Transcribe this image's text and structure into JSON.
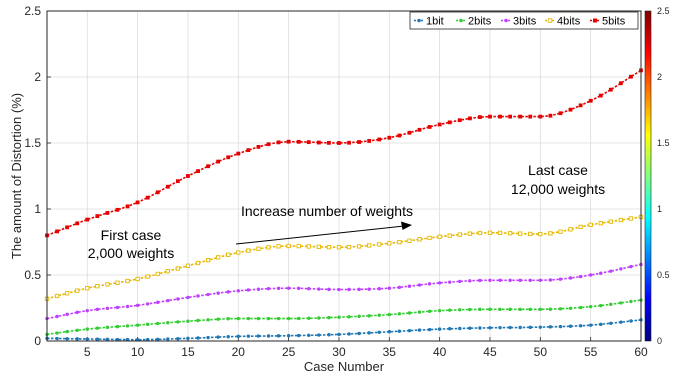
{
  "chart_data": {
    "type": "line",
    "xlabel": "Case Number",
    "ylabel": "The amount of Distortion (%)",
    "xlim": [
      1,
      60
    ],
    "ylim": [
      0,
      2.5
    ],
    "xticks": [
      "5",
      "10",
      "15",
      "20",
      "25",
      "30",
      "35",
      "40",
      "45",
      "50",
      "55",
      "60"
    ],
    "yticks": [
      "0",
      "0.5",
      "1",
      "1.5",
      "2",
      "2.5"
    ],
    "grid": true,
    "legend_position": "top-right",
    "colorbar": {
      "ticks": [
        "0",
        "0.5",
        "1",
        "1.5",
        "2",
        "2.5"
      ],
      "colors": [
        "#00007f",
        "#0000ff",
        "#007fff",
        "#00ffff",
        "#7fff7f",
        "#ffff00",
        "#ff7f00",
        "#ff0000",
        "#7f0000"
      ]
    },
    "anchors_x": [
      1,
      5,
      10,
      15,
      20,
      25,
      30,
      35,
      40,
      45,
      50,
      55,
      60
    ],
    "series": [
      {
        "name": "1bit",
        "color": "#1f77b4",
        "marker": "circle",
        "anchors": [
          0.02,
          0.015,
          0.01,
          0.02,
          0.035,
          0.04,
          0.05,
          0.07,
          0.09,
          0.1,
          0.105,
          0.12,
          0.16
        ]
      },
      {
        "name": "2bits",
        "color": "#33cc33",
        "marker": "circle",
        "anchors": [
          0.05,
          0.09,
          0.12,
          0.15,
          0.17,
          0.17,
          0.18,
          0.2,
          0.23,
          0.24,
          0.24,
          0.26,
          0.31
        ]
      },
      {
        "name": "3bits",
        "color": "#bf40ff",
        "marker": "circle",
        "anchors": [
          0.17,
          0.23,
          0.27,
          0.33,
          0.38,
          0.4,
          0.39,
          0.4,
          0.44,
          0.46,
          0.46,
          0.5,
          0.58
        ]
      },
      {
        "name": "4bits",
        "color": "#e6b800",
        "marker": "square-open",
        "anchors": [
          0.32,
          0.4,
          0.47,
          0.57,
          0.67,
          0.72,
          0.71,
          0.74,
          0.79,
          0.82,
          0.81,
          0.88,
          0.94
        ]
      },
      {
        "name": "5bits",
        "color": "#e60000",
        "marker": "square",
        "anchors": [
          0.8,
          0.92,
          1.05,
          1.25,
          1.42,
          1.51,
          1.5,
          1.54,
          1.64,
          1.7,
          1.7,
          1.82,
          2.05
        ]
      }
    ],
    "annotations": [
      {
        "id": "first-case",
        "lines": [
          "First case",
          "2,000 weights"
        ]
      },
      {
        "id": "increase",
        "lines": [
          "Increase number of weights"
        ]
      },
      {
        "id": "last-case",
        "lines": [
          "Last case",
          "12,000 weights"
        ]
      }
    ]
  }
}
